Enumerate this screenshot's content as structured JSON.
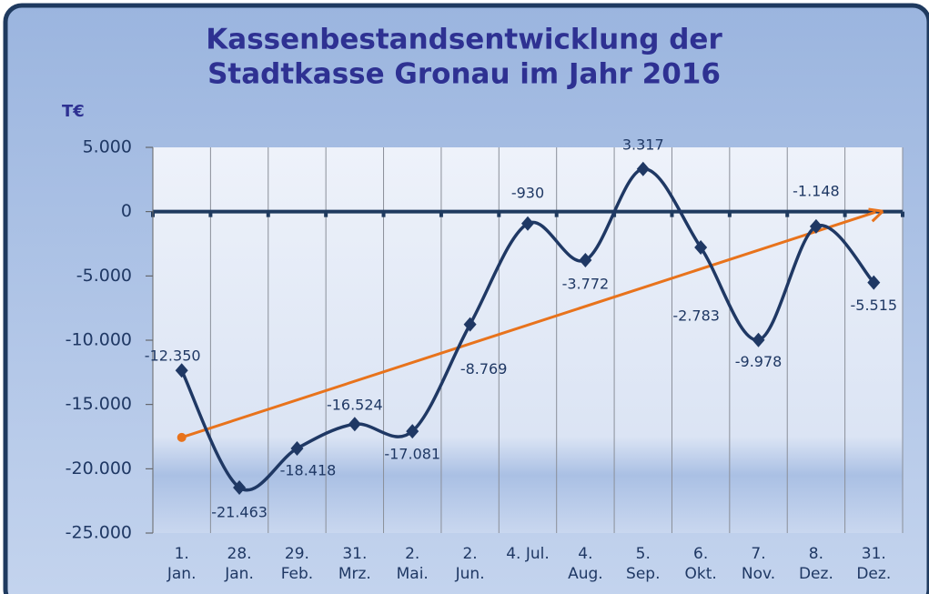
{
  "chart_data": {
    "type": "line",
    "title": [
      "Kassenbestandsentwicklung der",
      "Stadtkasse Gronau im Jahr 2016"
    ],
    "y_label": "T€",
    "categories": [
      "1. Jan.",
      "28. Jan.",
      "29. Feb.",
      "31. Mrz.",
      "2. Mai.",
      "2. Jun.",
      "4. Jul.",
      "4. Aug.",
      "5. Sep.",
      "6. Okt.",
      "7. Nov.",
      "8. Dez.",
      "31. Dez."
    ],
    "series": [
      {
        "color": "#1f3864",
        "values": [
          -12350,
          -21463,
          -18418,
          -16524,
          -17081,
          -8769,
          -930,
          -3772,
          3317,
          -2783,
          -9978,
          -1148,
          -5515
        ],
        "value_labels": [
          "-12.350",
          "-21.463",
          "-18.418",
          "-16.524",
          "-17.081",
          "-8.769",
          "-930",
          "-3.772",
          "3.317",
          "-2.783",
          "-9.978",
          "-1.148",
          "-5.515"
        ]
      }
    ],
    "trendline": {
      "color": "#e8731c"
    },
    "ylim": [
      -25000,
      5000
    ],
    "yticks": [
      {
        "value": 5000,
        "label": "5.000"
      },
      0,
      {
        "value": -5000,
        "label": "-5.000"
      },
      {
        "value": -10000,
        "label": "-10.000"
      },
      {
        "value": -15000,
        "label": "-15.000"
      },
      {
        "value": -20000,
        "label": "-20.000"
      },
      {
        "value": -25000,
        "label": "-25.000"
      }
    ],
    "grid": true
  }
}
